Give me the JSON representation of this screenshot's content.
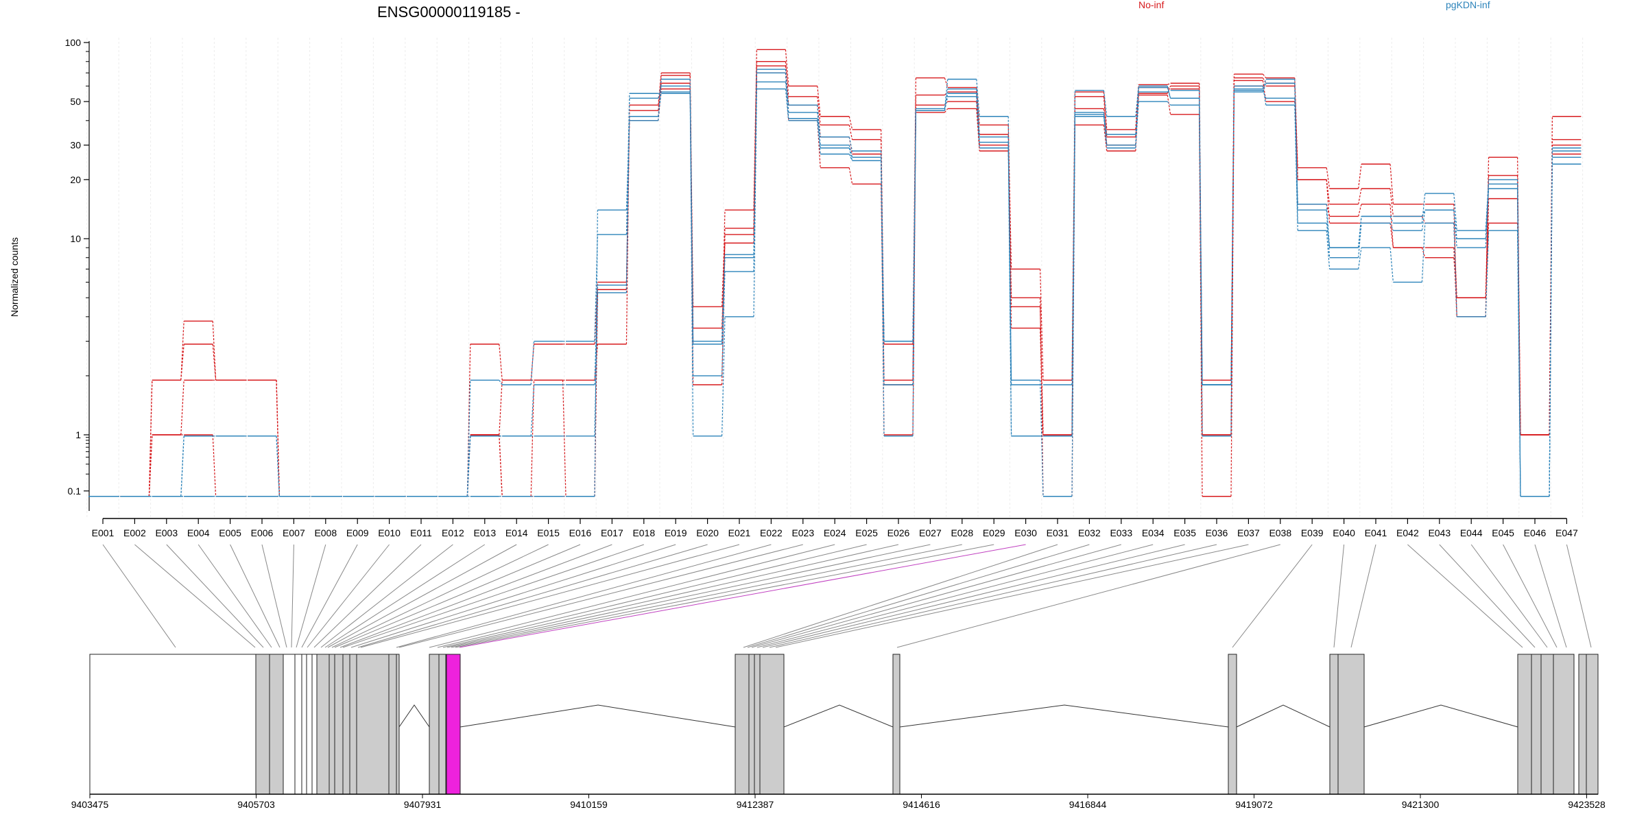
{
  "chart_data": {
    "type": "line",
    "title": "ENSG00000119185 -",
    "ylabel": "Normalized counts",
    "yscale": "log",
    "yticks": [
      {
        "value": 100,
        "label": "100"
      },
      {
        "value": 50,
        "label": "50"
      },
      {
        "value": 30,
        "label": "30"
      },
      {
        "value": 20,
        "label": "20"
      },
      {
        "value": 10,
        "label": "10"
      },
      {
        "value": 1,
        "label": "1"
      },
      {
        "value": 0.1,
        "label": "0.1"
      }
    ],
    "categories": [
      "E001",
      "E002",
      "E003",
      "E004",
      "E005",
      "E006",
      "E007",
      "E008",
      "E009",
      "E010",
      "E011",
      "E012",
      "E013",
      "E014",
      "E015",
      "E016",
      "E017",
      "E018",
      "E019",
      "E020",
      "E021",
      "E022",
      "E023",
      "E024",
      "E025",
      "E026",
      "E027",
      "E028",
      "E029",
      "E030",
      "E031",
      "E032",
      "E033",
      "E034",
      "E035",
      "E036",
      "E037",
      "E038",
      "E039",
      "E040",
      "E041",
      "E042",
      "E043",
      "E044",
      "E045",
      "E046",
      "E047"
    ],
    "legend": [
      {
        "label": "No-inf",
        "color": "#d7191c"
      },
      {
        "label": "pgKDN-inf",
        "color": "#2b83ba"
      }
    ],
    "series": [
      {
        "group": "No-inf",
        "color": "#d7191c",
        "values": [
          0.08,
          0.08,
          1.0,
          1.0,
          0.08,
          0.08,
          0.08,
          0.08,
          0.08,
          0.08,
          0.08,
          0.08,
          1.0,
          0.08,
          0.08,
          0.08,
          5.5,
          40,
          58,
          1.8,
          10.5,
          70,
          40,
          23,
          19,
          1.8,
          44,
          46,
          28,
          5.0,
          0.08,
          38,
          28,
          55,
          60,
          1.0,
          64,
          50,
          15,
          13,
          15,
          9,
          9,
          4,
          16,
          1.0,
          27
        ]
      },
      {
        "group": "No-inf",
        "color": "#d7191c",
        "values": [
          0.08,
          0.08,
          1.9,
          2.9,
          1.9,
          1.9,
          0.08,
          0.08,
          0.08,
          0.08,
          0.08,
          0.08,
          2.9,
          1.9,
          2.9,
          2.9,
          6.0,
          48,
          70,
          2.9,
          14.0,
          92,
          60,
          42,
          36,
          2.9,
          66,
          59,
          38,
          7.0,
          1.9,
          56,
          36,
          61,
          62,
          1.9,
          69,
          66,
          23,
          18,
          24,
          15,
          15,
          4,
          26,
          1.0,
          42
        ]
      },
      {
        "group": "No-inf",
        "color": "#d7191c",
        "values": [
          0.08,
          0.08,
          1.9,
          3.8,
          1.9,
          1.9,
          0.08,
          0.08,
          0.08,
          0.08,
          0.08,
          0.08,
          1.0,
          1.9,
          1.9,
          1.9,
          2.9,
          45,
          68,
          4.5,
          11.3,
          80,
          53,
          38,
          32,
          1.9,
          54,
          56,
          34,
          4.5,
          1.0,
          53,
          33,
          59,
          58,
          1.0,
          66,
          62,
          20,
          15,
          18,
          13,
          12,
          5,
          21,
          1.0,
          32
        ]
      },
      {
        "group": "No-inf",
        "color": "#d7191c",
        "values": [
          0.08,
          0.08,
          1.0,
          1.9,
          1.9,
          1.9,
          0.08,
          0.08,
          0.08,
          0.08,
          0.08,
          0.08,
          1.0,
          0.08,
          1.9,
          0.08,
          5.5,
          42,
          62,
          3.5,
          9.5,
          76,
          48,
          33,
          27,
          1.0,
          48,
          50,
          30,
          3.5,
          1.0,
          46,
          30,
          54,
          43,
          0.08,
          60,
          60,
          20,
          12,
          12,
          9,
          8,
          5,
          12,
          1.0,
          30
        ]
      },
      {
        "group": "pgKDN-inf",
        "color": "#2b83ba",
        "values": [
          0.08,
          0.08,
          0.08,
          0.95,
          0.95,
          0.95,
          0.08,
          0.08,
          0.08,
          0.08,
          0.08,
          0.08,
          0.95,
          0.95,
          0.95,
          0.95,
          5.3,
          55,
          55,
          0.95,
          4.0,
          58,
          40,
          27,
          25,
          0.95,
          46,
          65,
          42,
          0.95,
          0.95,
          57,
          42,
          60,
          52,
          0.95,
          60,
          48,
          11,
          7,
          9,
          6,
          12,
          4,
          11,
          0.08,
          24
        ]
      },
      {
        "group": "pgKDN-inf",
        "color": "#2b83ba",
        "values": [
          0.08,
          0.08,
          0.08,
          0.08,
          0.08,
          0.08,
          0.08,
          0.08,
          0.08,
          0.08,
          0.08,
          0.08,
          0.08,
          0.08,
          0.08,
          0.08,
          14.0,
          40,
          65,
          2.0,
          6.8,
          73,
          44,
          33,
          28,
          3.0,
          45,
          58,
          33,
          1.9,
          0.08,
          44,
          34,
          56,
          57,
          1.8,
          58,
          65,
          12,
          9,
          13,
          12,
          17,
          11,
          20,
          0.08,
          28
        ]
      },
      {
        "group": "pgKDN-inf",
        "color": "#2b83ba",
        "values": [
          0.08,
          0.08,
          0.08,
          0.08,
          0.08,
          0.08,
          0.08,
          0.08,
          0.08,
          0.08,
          0.08,
          0.08,
          1.9,
          1.8,
          3.0,
          3.0,
          10.5,
          52,
          60,
          3.0,
          8.3,
          63,
          48,
          29,
          25,
          3.0,
          45,
          55,
          31,
          1.8,
          1.8,
          43,
          30,
          59,
          52,
          1.8,
          56,
          62,
          14,
          8,
          12,
          11,
          14,
          9,
          18,
          0.08,
          26
        ]
      },
      {
        "group": "pgKDN-inf",
        "color": "#2b83ba",
        "values": [
          0.08,
          0.08,
          0.08,
          0.95,
          0.95,
          0.95,
          0.08,
          0.08,
          0.08,
          0.08,
          0.08,
          0.08,
          0.95,
          0.95,
          1.8,
          1.8,
          5.8,
          42,
          56,
          2.9,
          8.0,
          70,
          41,
          30,
          26,
          1.8,
          45,
          53,
          29,
          0.95,
          0.95,
          42,
          29,
          50,
          48,
          1.8,
          57,
          52,
          15,
          9,
          13,
          13,
          14,
          10,
          19,
          0.08,
          29
        ]
      }
    ],
    "gene_model": {
      "coordinate_labels": [
        "9403475",
        "9405703",
        "9407931",
        "9410159",
        "9412387",
        "9414616",
        "9416844",
        "9419072",
        "9421300",
        "9423528"
      ],
      "highlighted_exon": "E030"
    }
  }
}
